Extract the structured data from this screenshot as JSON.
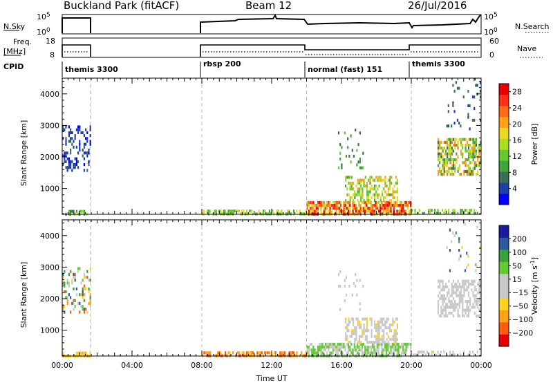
{
  "header": {
    "title": "Buckland Park (fitACF)",
    "beam": "Beam 12",
    "date": "26/Jul/2016"
  },
  "summary": {
    "nsky_label": "N.Sky",
    "nsky_ticks": [
      "10^5",
      "10^0"
    ],
    "nsearch_label": "N.Search",
    "nsearch_ticks": [
      "10^5",
      "10^0"
    ],
    "freq_label": [
      "Freq.",
      "[MHz]"
    ],
    "freq_ticks": [
      "18",
      "8"
    ],
    "nave_label": "Nave",
    "nave_ticks": [
      "60",
      "0"
    ],
    "cpid_label": "CPID",
    "cpid_segments": [
      {
        "label": "themis 3300",
        "start": 0.0,
        "end": 1.6
      },
      {
        "label": "rbsp 200",
        "start": 8.0,
        "end": 14.0
      },
      {
        "label": "normal (fast) 151",
        "start": 14.0,
        "end": 20.0
      },
      {
        "label": "themis 3300",
        "start": 20.0,
        "end": 24.0
      }
    ],
    "data_intervals": [
      [
        0.0,
        1.6
      ],
      [
        8.0,
        24.0
      ]
    ]
  },
  "chart_data": [
    {
      "type": "heatmap",
      "parameter": "Power",
      "ylabel": "Slant Range [km]",
      "xlabel": "Time UT",
      "xlim": [
        0,
        24
      ],
      "ylim": [
        180,
        4500
      ],
      "yticks": [
        "1000",
        "2000",
        "3000",
        "4000"
      ],
      "xticks": [
        "00:00",
        "04:00",
        "08:00",
        "12:00",
        "16:00",
        "20:00",
        "00:00"
      ],
      "colorbar": {
        "label": "Power [dB]",
        "ticks": [
          "4",
          "8",
          "12",
          "16",
          "20",
          "24",
          "28"
        ],
        "range": [
          0,
          30
        ],
        "colors": [
          "#0000ff",
          "#1f3fa8",
          "#3a6e55",
          "#3fa53a",
          "#66c830",
          "#aadd22",
          "#e8d81e",
          "#ffa019",
          "#ff6a14",
          "#ff3010",
          "#e60000"
        ]
      },
      "regions": [
        {
          "t": [
            0.0,
            1.6
          ],
          "r": [
            1600,
            3000
          ],
          "v": [
            2,
            6
          ],
          "d": 0.35
        },
        {
          "t": [
            0.0,
            1.6
          ],
          "r": [
            180,
            320
          ],
          "v": [
            6,
            16
          ],
          "d": 0.6
        },
        {
          "t": [
            8.0,
            14.0
          ],
          "r": [
            180,
            330
          ],
          "v": [
            8,
            18
          ],
          "d": 0.6
        },
        {
          "t": [
            14.0,
            20.0
          ],
          "r": [
            180,
            600
          ],
          "v": [
            14,
            30
          ],
          "d": 0.8
        },
        {
          "t": [
            16.2,
            19.2
          ],
          "r": [
            600,
            1400
          ],
          "v": [
            10,
            22
          ],
          "d": 0.55
        },
        {
          "t": [
            15.8,
            17.3
          ],
          "r": [
            1600,
            2900
          ],
          "v": [
            6,
            12
          ],
          "d": 0.12
        },
        {
          "t": [
            21.5,
            24.0
          ],
          "r": [
            1400,
            2600
          ],
          "v": [
            6,
            24
          ],
          "d": 0.6
        },
        {
          "t": [
            20.0,
            24.0
          ],
          "r": [
            180,
            350
          ],
          "v": [
            8,
            16
          ],
          "d": 0.45
        },
        {
          "t": [
            22.0,
            24.0
          ],
          "r": [
            2800,
            4500
          ],
          "v": [
            4,
            8
          ],
          "d": 0.06
        }
      ]
    },
    {
      "type": "heatmap",
      "parameter": "Velocity",
      "ylabel": "Slant Range [km]",
      "xlabel": "Time UT",
      "xlim": [
        0,
        24
      ],
      "ylim": [
        180,
        4500
      ],
      "yticks": [
        "1000",
        "2000",
        "3000",
        "4000"
      ],
      "xticks": [
        "00:00",
        "04:00",
        "08:00",
        "12:00",
        "16:00",
        "20:00",
        "00:00"
      ],
      "colorbar": {
        "label": "Velocity [m s^-1]",
        "ticks": [
          "200",
          "100",
          "50",
          "15",
          "−15",
          "−50",
          "−100",
          "−200"
        ],
        "range": [
          -250,
          250
        ],
        "colors": [
          "#e60000",
          "#ff5a10",
          "#ffa019",
          "#ffd21e",
          "#c8c8c8",
          "#c8c8c8",
          "#64c832",
          "#3aa03a",
          "#2a5a9a",
          "#1a1aa0"
        ]
      },
      "regions": [
        {
          "t": [
            0.0,
            1.6
          ],
          "r": [
            1600,
            3000
          ],
          "v": [
            -200,
            200
          ],
          "d": 0.3
        },
        {
          "t": [
            0.0,
            1.6
          ],
          "r": [
            180,
            320
          ],
          "v": [
            -120,
            -60
          ],
          "d": 0.6
        },
        {
          "t": [
            8.0,
            14.0
          ],
          "r": [
            180,
            330
          ],
          "v": [
            -200,
            -80
          ],
          "d": 0.6
        },
        {
          "t": [
            14.0,
            20.0
          ],
          "r": [
            180,
            600
          ],
          "v": [
            20,
            80
          ],
          "d": 0.7
        },
        {
          "t": [
            16.2,
            19.2
          ],
          "r": [
            600,
            1400
          ],
          "v": [
            -60,
            0
          ],
          "d": 0.55
        },
        {
          "t": [
            15.8,
            17.3
          ],
          "r": [
            1600,
            2900
          ],
          "v": [
            -40,
            40
          ],
          "d": 0.1
        },
        {
          "t": [
            21.5,
            24.0
          ],
          "r": [
            1400,
            2600
          ],
          "v": [
            -20,
            10
          ],
          "d": 0.6
        },
        {
          "t": [
            20.0,
            24.0
          ],
          "r": [
            180,
            350
          ],
          "v": [
            -60,
            20
          ],
          "d": 0.4
        },
        {
          "t": [
            22.0,
            24.0
          ],
          "r": [
            2800,
            4500
          ],
          "v": [
            -100,
            200
          ],
          "d": 0.06
        }
      ]
    }
  ]
}
